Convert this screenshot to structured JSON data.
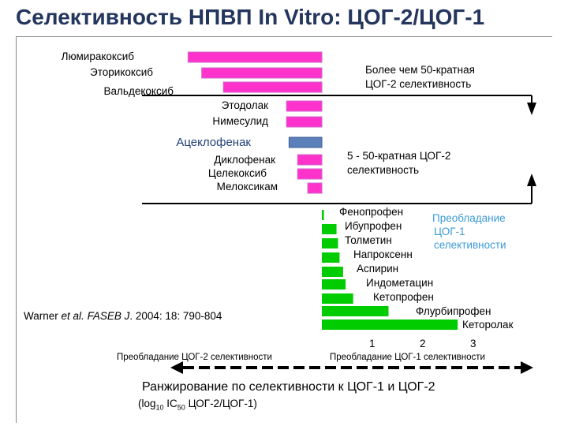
{
  "title": "Селективность НПВП In Vitro: ЦОГ-2/ЦОГ-1",
  "notes": {
    "cox2_high_line1": "Более чем  50-кратная",
    "cox2_high_line2": "ЦОГ-2 селективность",
    "cox2_mid_line1": "5 - 50-кратная ЦОГ-2",
    "cox2_mid_line2": "селективность",
    "cox1_line1": "Преобладание",
    "cox1_line2": "ЦОГ-1",
    "cox1_line3": "селективности"
  },
  "citation": {
    "author": "Warner",
    "et_al": "et al.",
    "journal": "FASEB J",
    "rest": ". 2004: 18: 790-804"
  },
  "axis": {
    "left_caption": "Преобладание ЦОГ-2 селективности",
    "right_caption": "Преобладание ЦОГ-1 селективности",
    "tick_labels": [
      "1",
      "2",
      "3"
    ]
  },
  "ranking": {
    "line1": "Ранжирование по  селективности к ЦОГ-1  и ЦОГ-2",
    "line2_pre": "(log",
    "line2_sub1": "10",
    "line2_mid": " IC",
    "line2_sub2": "50",
    "line2_post": " ЦОГ-2/ЦОГ-1)"
  },
  "chart_data": {
    "type": "bar",
    "orientation": "horizontal",
    "title": "Селективность НПВП In Vitro: ЦОГ-2/ЦОГ-1",
    "xlabel": "Ранжирование по  селективности к ЦОГ-1  и ЦОГ-2 (log10 IC50 ЦОГ-2/ЦОГ-1)",
    "x_zero": 0,
    "xlim": [
      -3,
      3.3
    ],
    "xticks": [
      1,
      2,
      3
    ],
    "categories": [
      "Люмиракоксиб",
      "Эторикоксиб",
      "Вальдекоксиб",
      "Этодолак",
      "Нимесулид",
      "Ацеклофенак",
      "Диклофенак",
      "Целекоксиб",
      "Мелоксикам",
      "Фенопрофен",
      "Ибупрофен",
      "Толметин",
      "Напроксенн",
      "Аспирин",
      "Индометацин",
      "Кетопрофен",
      "Флурбипрофен",
      "Кеторолак"
    ],
    "values": [
      -2.65,
      -2.38,
      -1.95,
      -0.7,
      -0.7,
      -0.65,
      -0.48,
      -0.48,
      -0.28,
      0.04,
      0.29,
      0.32,
      0.35,
      0.42,
      0.47,
      0.62,
      1.32,
      2.69
    ],
    "colors": {
      "default": "#ff33cc",
      "border": "#cc66cc",
      "highlight": "#5b7fb8",
      "cox1": "#00cc00"
    },
    "highlight_category": "Ацеклофенак"
  }
}
